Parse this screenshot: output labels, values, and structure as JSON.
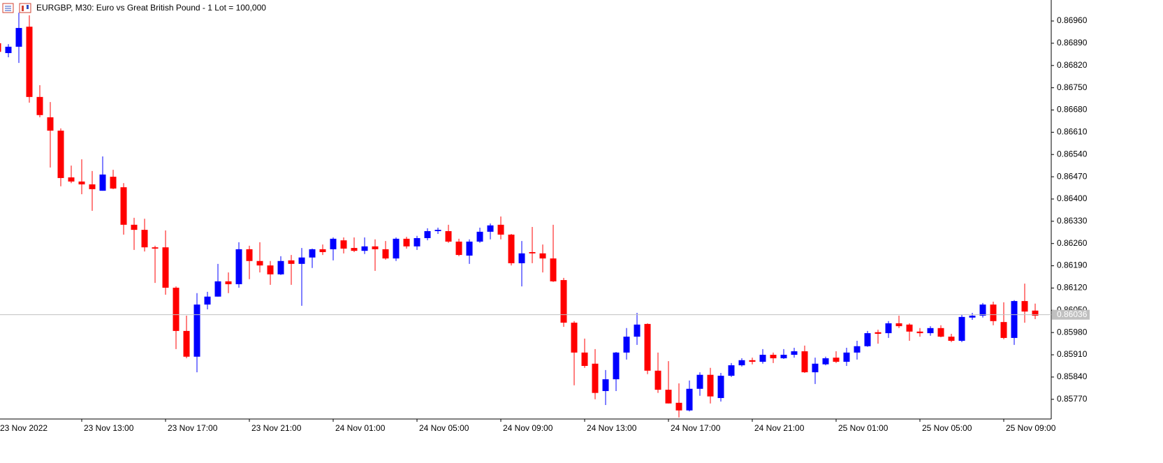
{
  "chart_data": {
    "type": "candlestick",
    "title": "EURGBP, M30:  Euro vs Great British Pound  - 1 Lot = 100,000",
    "categories": [
      "23 Nov 2022",
      null,
      null,
      null,
      null,
      null,
      null,
      null,
      "23 Nov 13:00",
      null,
      null,
      null,
      null,
      null,
      null,
      null,
      "23 Nov 17:00",
      null,
      null,
      null,
      null,
      null,
      null,
      null,
      "23 Nov 21:00",
      null,
      null,
      null,
      null,
      null,
      null,
      null,
      "24 Nov 01:00",
      null,
      null,
      null,
      null,
      null,
      null,
      null,
      "24 Nov 05:00",
      null,
      null,
      null,
      null,
      null,
      null,
      null,
      "24 Nov 09:00",
      null,
      null,
      null,
      null,
      null,
      null,
      null,
      "24 Nov 13:00",
      null,
      null,
      null,
      null,
      null,
      null,
      null,
      "24 Nov 17:00",
      null,
      null,
      null,
      null,
      null,
      null,
      null,
      "24 Nov 21:00",
      null,
      null,
      null,
      null,
      null,
      null,
      null,
      "25 Nov 01:00",
      null,
      null,
      null,
      null,
      null,
      null,
      null,
      "25 Nov 05:00",
      null,
      null,
      null,
      null,
      null,
      null,
      null,
      "25 Nov 09:00",
      null,
      null,
      null
    ],
    "open": [
      0.8689,
      0.86859,
      0.86879,
      0.86942,
      0.86721,
      0.86657,
      0.86615,
      0.86468,
      0.86455,
      0.86446,
      0.86426,
      0.8647,
      0.86437,
      0.86319,
      0.86303,
      0.86248,
      0.86248,
      0.86121,
      0.85985,
      0.85904,
      0.86068,
      0.86093,
      0.86141,
      0.86132,
      0.86242,
      0.86205,
      0.86191,
      0.86163,
      0.86207,
      0.86196,
      0.86216,
      0.86242,
      0.86242,
      0.8627,
      0.86246,
      0.86237,
      0.86251,
      0.86242,
      0.86213,
      0.86275,
      0.86251,
      0.86277,
      0.86299,
      0.86299,
      0.86266,
      0.86222,
      0.86266,
      0.86297,
      0.86319,
      0.86288,
      0.86198,
      0.86233,
      0.86229,
      0.86213,
      0.86145,
      0.86011,
      0.85917,
      0.85882,
      0.85796,
      0.85833,
      0.85917,
      0.85967,
      0.86007,
      0.8586,
      0.858,
      0.85759,
      0.85735,
      0.85803,
      0.85847,
      0.85774,
      0.85844,
      0.85877,
      0.85893,
      0.85888,
      0.8591,
      0.85899,
      0.8591,
      0.85921,
      0.85855,
      0.8588,
      0.85901,
      0.85888,
      0.85917,
      0.85937,
      0.85981,
      0.85978,
      0.86009,
      0.86005,
      0.85983,
      0.85978,
      0.85994,
      0.85967,
      0.85954,
      0.86027,
      0.86033,
      0.86068,
      0.86013,
      0.85963,
      0.86079,
      0.86049
    ],
    "high": [
      0.86905,
      0.86887,
      0.86986,
      0.86978,
      0.86758,
      0.86705,
      0.86622,
      0.86505,
      0.86525,
      0.86488,
      0.86534,
      0.86492,
      0.8645,
      0.86341,
      0.86338,
      0.86253,
      0.86301,
      0.86125,
      0.86033,
      0.86104,
      0.86108,
      0.86196,
      0.86169,
      0.86264,
      0.86253,
      0.86264,
      0.86205,
      0.8622,
      0.86224,
      0.86246,
      0.86244,
      0.86257,
      0.86279,
      0.86279,
      0.86279,
      0.86279,
      0.86273,
      0.86268,
      0.86279,
      0.86281,
      0.86284,
      0.86308,
      0.8631,
      0.86319,
      0.86275,
      0.86273,
      0.8631,
      0.86323,
      0.86345,
      0.8629,
      0.86268,
      0.86312,
      0.86257,
      0.86319,
      0.86152,
      0.86016,
      0.85961,
      0.85928,
      0.85862,
      0.85919,
      0.85994,
      0.86042,
      0.86009,
      0.85917,
      0.8589,
      0.8582,
      0.85829,
      0.85855,
      0.85869,
      0.85853,
      0.85884,
      0.85899,
      0.85901,
      0.85928,
      0.85917,
      0.85928,
      0.85932,
      0.85939,
      0.85901,
      0.85904,
      0.85921,
      0.85932,
      0.85954,
      0.85985,
      0.85989,
      0.86016,
      0.86033,
      0.86009,
      0.85994,
      0.86,
      0.86003,
      0.85976,
      0.86036,
      0.86042,
      0.86073,
      0.86077,
      0.86075,
      0.86082,
      0.86134,
      0.86071
    ],
    "low": [
      0.86855,
      0.86846,
      0.86828,
      0.86703,
      0.86657,
      0.86499,
      0.8644,
      0.8645,
      0.86415,
      0.86363,
      0.86426,
      0.86431,
      0.86288,
      0.8624,
      0.86235,
      0.86136,
      0.86099,
      0.85928,
      0.85899,
      0.85855,
      0.86053,
      0.86093,
      0.86104,
      0.86121,
      0.86148,
      0.86169,
      0.8613,
      0.86161,
      0.8613,
      0.86064,
      0.86183,
      0.86224,
      0.86207,
      0.86229,
      0.86233,
      0.86227,
      0.86174,
      0.86209,
      0.86205,
      0.86244,
      0.8624,
      0.8627,
      0.8629,
      0.86262,
      0.8622,
      0.86196,
      0.86262,
      0.86273,
      0.86273,
      0.86191,
      0.86125,
      0.86198,
      0.86169,
      0.86139,
      0.85998,
      0.85814,
      0.85869,
      0.8577,
      0.85752,
      0.85796,
      0.85895,
      0.85941,
      0.85849,
      0.8579,
      0.85757,
      0.85713,
      0.85732,
      0.85781,
      0.85757,
      0.85763,
      0.8584,
      0.85873,
      0.8588,
      0.85882,
      0.85884,
      0.85897,
      0.85901,
      0.85853,
      0.85818,
      0.85877,
      0.85884,
      0.85875,
      0.85895,
      0.85935,
      0.85945,
      0.85963,
      0.85994,
      0.85954,
      0.85967,
      0.8597,
      0.85965,
      0.8595,
      0.8595,
      0.8602,
      0.86027,
      0.86003,
      0.85959,
      0.85941,
      0.86011,
      0.86022
    ],
    "close": [
      0.86863,
      0.86879,
      0.86938,
      0.86721,
      0.86664,
      0.86615,
      0.86466,
      0.86455,
      0.86446,
      0.86431,
      0.86477,
      0.86433,
      0.86319,
      0.86303,
      0.86248,
      0.86244,
      0.86121,
      0.85985,
      0.85904,
      0.86068,
      0.86093,
      0.86141,
      0.86132,
      0.86242,
      0.86205,
      0.86191,
      0.86163,
      0.86205,
      0.86196,
      0.86216,
      0.86242,
      0.86233,
      0.86275,
      0.86244,
      0.86237,
      0.86251,
      0.86242,
      0.86213,
      0.86275,
      0.86251,
      0.86277,
      0.86299,
      0.86303,
      0.86266,
      0.86224,
      0.86266,
      0.86297,
      0.86317,
      0.86288,
      0.86198,
      0.86229,
      0.86229,
      0.86213,
      0.86141,
      0.86011,
      0.85917,
      0.85875,
      0.8579,
      0.85833,
      0.85917,
      0.85967,
      0.86005,
      0.8586,
      0.858,
      0.85757,
      0.85735,
      0.85803,
      0.85847,
      0.85779,
      0.85844,
      0.85877,
      0.85893,
      0.85888,
      0.8591,
      0.85899,
      0.8591,
      0.85921,
      0.85855,
      0.85882,
      0.85899,
      0.85888,
      0.85917,
      0.85937,
      0.85978,
      0.85976,
      0.86009,
      0.86,
      0.85983,
      0.85978,
      0.85994,
      0.85967,
      0.85954,
      0.86029,
      0.86033,
      0.86068,
      0.86016,
      0.85963,
      0.86079,
      0.86046,
      0.86033
    ],
    "up_color": "#0000ff",
    "down_color": "#ff0000",
    "last_price": 0.86036,
    "ylim": [
      0.85708,
      0.87026
    ],
    "yticks": [
      {
        "value": 0.8696,
        "label": "0.86960"
      },
      {
        "value": 0.8689,
        "label": "0.86890"
      },
      {
        "value": 0.8682,
        "label": "0.86820"
      },
      {
        "value": 0.8675,
        "label": "0.86750"
      },
      {
        "value": 0.8668,
        "label": "0.86680"
      },
      {
        "value": 0.8661,
        "label": "0.86610"
      },
      {
        "value": 0.8654,
        "label": "0.86540"
      },
      {
        "value": 0.8647,
        "label": "0.86470"
      },
      {
        "value": 0.864,
        "label": "0.86400"
      },
      {
        "value": 0.8633,
        "label": "0.86330"
      },
      {
        "value": 0.8626,
        "label": "0.86260"
      },
      {
        "value": 0.8619,
        "label": "0.86190"
      },
      {
        "value": 0.8612,
        "label": "0.86120"
      },
      {
        "value": 0.8605,
        "label": "0.86050"
      },
      {
        "value": 0.8598,
        "label": "0.85980"
      },
      {
        "value": 0.8591,
        "label": "0.85910"
      },
      {
        "value": 0.8584,
        "label": "0.85840"
      },
      {
        "value": 0.8577,
        "label": "0.85770"
      }
    ],
    "grid": false
  }
}
